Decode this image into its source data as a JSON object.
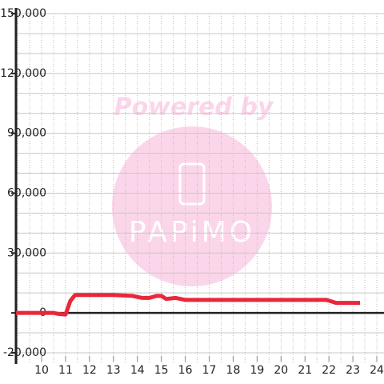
{
  "chart_data": {
    "type": "line",
    "watermark": {
      "title": "Powered by",
      "logo": "PAPiMO"
    },
    "x": [
      8.93,
      10.5,
      10.7,
      11.0,
      11.2,
      11.4,
      12.0,
      13.0,
      13.8,
      14.2,
      14.5,
      14.8,
      15.0,
      15.2,
      15.6,
      16.0,
      17.0,
      19.0,
      21.0,
      21.9,
      22.3,
      23.3
    ],
    "values": [
      0,
      0,
      -500,
      -800,
      6000,
      9000,
      9000,
      9000,
      8500,
      7500,
      7500,
      8500,
      8500,
      7000,
      7500,
      6500,
      6500,
      6500,
      6500,
      6500,
      5000,
      5000
    ],
    "color": "#e8283a",
    "xlim": [
      8.93,
      24.3
    ],
    "xticks": [
      10,
      11,
      12,
      13,
      14,
      15,
      16,
      17,
      18,
      19,
      20,
      21,
      22,
      23,
      24
    ],
    "ylim": [
      -20000,
      150000
    ],
    "yticks": [
      {
        "value": -20000,
        "label": "-20,000"
      },
      0,
      {
        "value": 30000,
        "label": "30,000"
      },
      {
        "value": 60000,
        "label": "60,000"
      },
      {
        "value": 90000,
        "label": "90,000"
      },
      {
        "value": 120000,
        "label": "120,000"
      },
      {
        "value": 150000,
        "label": "150,000"
      }
    ],
    "ygrid_step": 10000,
    "xgrid_step": 0.5,
    "grid": true
  }
}
